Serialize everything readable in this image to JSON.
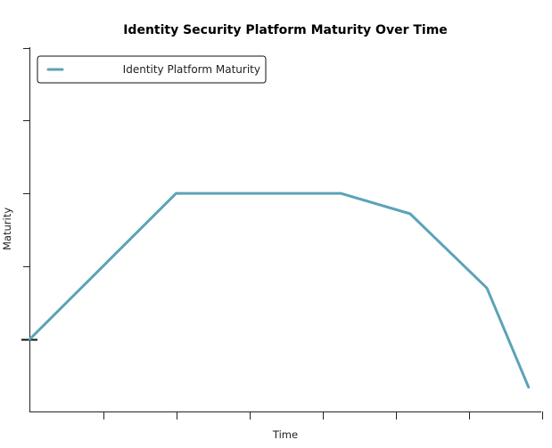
{
  "chart_data": {
    "type": "line",
    "title": "Identity Security Platform Maturity Over Time",
    "xlabel": "Time",
    "ylabel": "Maturity",
    "xlim": [
      0,
      7
    ],
    "ylim": [
      0,
      5
    ],
    "x_ticks": [
      0,
      1,
      2,
      3,
      4,
      5,
      6,
      7
    ],
    "y_ticks": [
      1,
      2,
      3,
      4,
      5
    ],
    "grid": false,
    "legend_position": "top-left",
    "series": [
      {
        "name": "Identity Platform Maturity",
        "color": "#5ba3b8",
        "x": [
          0,
          1,
          2,
          3,
          4.25,
          5.2,
          6.25,
          6.82
        ],
        "y": [
          1,
          2,
          3,
          3,
          3,
          2.72,
          1.7,
          0.34
        ]
      }
    ]
  }
}
